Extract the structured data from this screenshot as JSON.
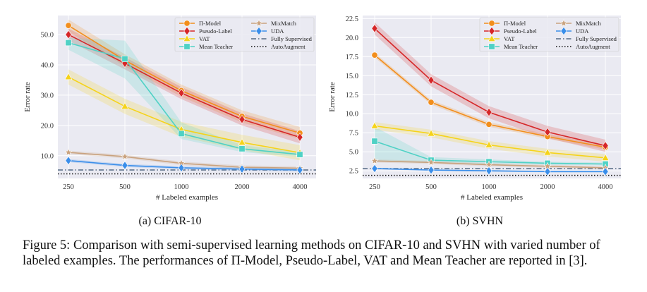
{
  "figure": {
    "caption": "Figure 5: Comparison with semi-supervised learning methods on CIFAR-10 and SVHN with varied number of labeled examples. The performances of Π-Model, Pseudo-Label, VAT and Mean Teacher are reported in [3].",
    "colors": {
      "Π-Model": "#f28e1c",
      "Pseudo-Label": "#d62728",
      "VAT": "#f5d31a",
      "Mean Teacher": "#4fd1c5",
      "MixMatch": "#c9a27e",
      "UDA": "#3a8eea",
      "Fully Supervised": "#556b83",
      "AutoAugment": "#111111"
    }
  },
  "chart_data": [
    {
      "type": "line",
      "subcaption": "(a) CIFAR-10",
      "xlabel": "# Labeled examples",
      "ylabel": "Error rate",
      "categories": [
        "250",
        "500",
        "1000",
        "2000",
        "4000"
      ],
      "yticks": [
        "10.0",
        "20.0",
        "30.0",
        "40.0",
        "50.0"
      ],
      "ylim": [
        2.5,
        56.3
      ],
      "grid": true,
      "legend": "top-right",
      "series": [
        {
          "name": "Π-Model",
          "marker": "circle",
          "values": [
            53.0,
            41.5,
            31.5,
            23.0,
            17.5
          ],
          "band": 2.0
        },
        {
          "name": "Pseudo-Label",
          "marker": "diamond",
          "values": [
            50.0,
            40.5,
            30.7,
            22.0,
            16.1
          ],
          "band": 2.0
        },
        {
          "name": "VAT",
          "marker": "triangle",
          "values": [
            36.0,
            26.3,
            18.7,
            14.4,
            11.0
          ],
          "band": 2.5
        },
        {
          "name": "Mean Teacher",
          "marker": "square",
          "values": [
            47.3,
            42.0,
            17.3,
            12.3,
            10.4
          ],
          "band_upper": [
            49.0,
            48.0,
            21.0,
            13.5,
            11.2
          ],
          "band_lower": [
            45.0,
            35.5,
            15.5,
            11.2,
            9.6
          ]
        },
        {
          "name": "MixMatch",
          "marker": "star",
          "values": [
            11.1,
            9.7,
            7.5,
            6.2,
            5.9
          ],
          "band": 0.6
        },
        {
          "name": "UDA",
          "marker": "diamond",
          "values": [
            8.4,
            6.8,
            6.0,
            5.6,
            5.3
          ],
          "band": 0.5
        },
        {
          "name": "Fully Supervised",
          "style": "dashdot",
          "constant": 5.3
        },
        {
          "name": "AutoAugment",
          "style": "dotted",
          "constant": 4.0
        }
      ]
    },
    {
      "type": "line",
      "subcaption": "(b) SVHN",
      "xlabel": "# Labeled examples",
      "ylabel": "Error rate",
      "categories": [
        "250",
        "500",
        "1000",
        "2000",
        "4000"
      ],
      "yticks": [
        "2.5",
        "5.0",
        "7.5",
        "10.0",
        "12.5",
        "15.0",
        "17.5",
        "20.0",
        "22.5"
      ],
      "ylim": [
        1.5,
        22.9
      ],
      "grid": true,
      "legend": "top-right",
      "series": [
        {
          "name": "Π-Model",
          "marker": "circle",
          "values": [
            17.7,
            11.5,
            8.6,
            7.0,
            5.6
          ],
          "band": 0.3
        },
        {
          "name": "Pseudo-Label",
          "marker": "diamond",
          "values": [
            21.2,
            14.4,
            10.2,
            7.6,
            5.8
          ],
          "band": 0.8
        },
        {
          "name": "VAT",
          "marker": "triangle",
          "values": [
            8.4,
            7.4,
            5.9,
            4.9,
            4.2
          ],
          "band": 0.5
        },
        {
          "name": "Mean Teacher",
          "marker": "square",
          "values": [
            6.4,
            3.9,
            3.7,
            3.5,
            3.4
          ],
          "band_upper": [
            8.3,
            4.3,
            4.0,
            3.7,
            3.6
          ],
          "band_lower": [
            3.7,
            3.5,
            3.4,
            3.3,
            3.2
          ]
        },
        {
          "name": "MixMatch",
          "marker": "star",
          "values": [
            3.8,
            3.6,
            3.3,
            3.1,
            2.9
          ],
          "band": 0.2
        },
        {
          "name": "UDA",
          "marker": "diamond",
          "values": [
            2.8,
            2.6,
            2.5,
            2.4,
            2.4
          ],
          "band": 0.1
        },
        {
          "name": "Fully Supervised",
          "style": "dashdot",
          "constant": 2.8
        },
        {
          "name": "AutoAugment",
          "style": "dotted",
          "constant": 1.9
        }
      ]
    }
  ]
}
